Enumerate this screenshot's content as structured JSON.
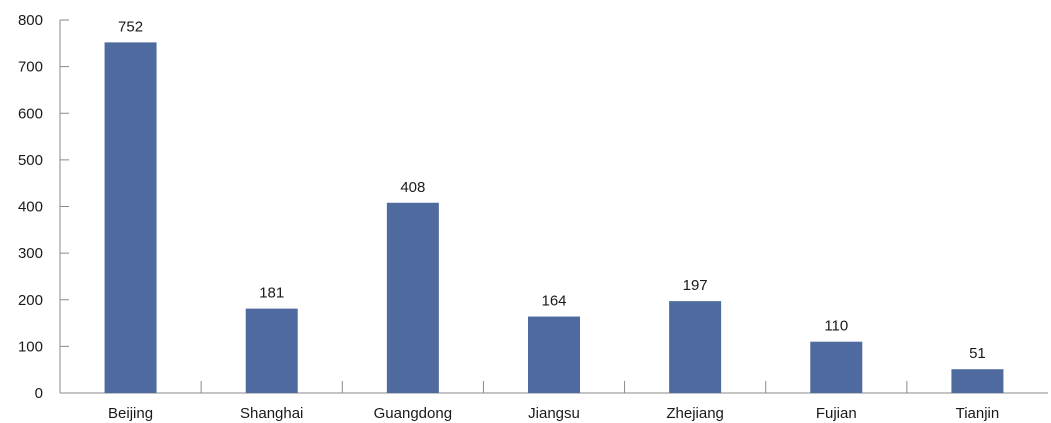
{
  "chart_data": {
    "type": "bar",
    "categories": [
      "Beijing",
      "Shanghai",
      "Guangdong",
      "Jiangsu",
      "Zhejiang",
      "Fujian",
      "Tianjin"
    ],
    "values": [
      752,
      181,
      408,
      164,
      197,
      110,
      51
    ],
    "data_labels": [
      "752",
      "181",
      "408",
      "164",
      "197",
      "110",
      "51"
    ],
    "ylim": [
      0,
      800
    ],
    "yticks": [
      0,
      100,
      200,
      300,
      400,
      500,
      600,
      700,
      800
    ],
    "ytick_labels": [
      "0",
      "100",
      "200",
      "300",
      "400",
      "500",
      "600",
      "700",
      "800"
    ],
    "bar_color": "#4e6a9e",
    "grid": false,
    "legend": "none"
  }
}
